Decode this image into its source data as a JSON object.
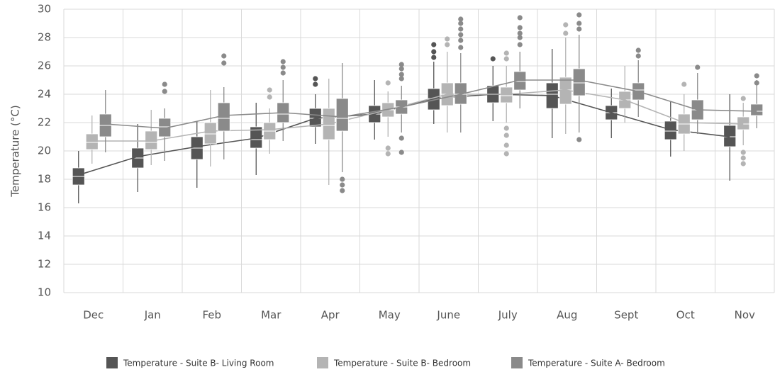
{
  "chart_data": {
    "type": "box",
    "y_label": "Temperature (°C)",
    "categories": [
      "Dec",
      "Jan",
      "Feb",
      "Mar",
      "Apr",
      "May",
      "June",
      "July",
      "Aug",
      "Sept",
      "Oct",
      "Nov"
    ],
    "ylim": [
      10,
      30
    ],
    "yticks": [
      10,
      12,
      14,
      16,
      18,
      20,
      22,
      24,
      26,
      28,
      30
    ],
    "grid": true,
    "legend": "bottom",
    "series": [
      {
        "name": "Temperature - Suite B- Living Room",
        "color": "#555555",
        "min": [
          16.3,
          17.1,
          17.4,
          18.3,
          20.5,
          20.8,
          21.9,
          22.1,
          20.9,
          20.9,
          19.6,
          17.9
        ],
        "q1": [
          17.6,
          18.8,
          19.4,
          20.2,
          21.7,
          22.0,
          22.9,
          23.4,
          23.0,
          22.2,
          20.8,
          20.3
        ],
        "median": [
          18.2,
          19.5,
          20.2,
          20.8,
          22.3,
          22.6,
          23.7,
          24.0,
          24.0,
          22.7,
          21.4,
          21.0
        ],
        "q3": [
          18.8,
          20.2,
          21.0,
          21.7,
          23.0,
          23.2,
          24.4,
          24.6,
          24.8,
          23.2,
          22.1,
          21.8
        ],
        "max": [
          20.0,
          21.9,
          22.1,
          23.4,
          24.0,
          25.0,
          26.3,
          26.0,
          27.2,
          24.4,
          23.5,
          24.0
        ],
        "mean": [
          18.3,
          19.6,
          20.3,
          20.9,
          22.3,
          22.6,
          23.7,
          24.0,
          23.9,
          22.7,
          21.5,
          21.0
        ],
        "outliers": [
          [],
          [],
          [],
          [],
          [
            24.7,
            25.1
          ],
          [],
          [
            26.6,
            27.0,
            27.5
          ],
          [
            26.5
          ],
          [],
          [],
          [],
          []
        ]
      },
      {
        "name": "Temperature - Suite B- Bedroom",
        "color": "#b4b4b4",
        "min": [
          19.1,
          19.0,
          18.9,
          19.8,
          17.6,
          21.0,
          21.3,
          22.0,
          21.2,
          22.0,
          20.0,
          20.4
        ],
        "q1": [
          20.1,
          20.1,
          20.5,
          20.8,
          20.8,
          22.4,
          23.2,
          23.4,
          23.3,
          23.0,
          21.2,
          21.5
        ],
        "median": [
          20.6,
          20.6,
          21.2,
          21.4,
          21.8,
          22.9,
          24.0,
          23.9,
          24.3,
          23.6,
          21.9,
          21.9
        ],
        "q3": [
          21.2,
          21.4,
          22.0,
          22.0,
          23.0,
          23.4,
          24.8,
          24.5,
          25.2,
          24.2,
          22.6,
          22.4
        ],
        "max": [
          22.5,
          22.9,
          24.3,
          23.0,
          25.1,
          24.2,
          27.0,
          26.0,
          28.0,
          26.0,
          24.0,
          23.4
        ],
        "mean": [
          20.7,
          20.7,
          21.4,
          21.5,
          21.9,
          22.9,
          24.0,
          24.0,
          24.3,
          23.6,
          22.0,
          21.9
        ],
        "outliers": [
          [],
          [],
          [],
          [
            23.8,
            24.3
          ],
          [],
          [
            24.8,
            20.2,
            19.8
          ],
          [
            27.5,
            27.9
          ],
          [
            26.5,
            26.9,
            21.6,
            21.1,
            20.4,
            19.8
          ],
          [
            28.3,
            28.9
          ],
          [],
          [
            24.7
          ],
          [
            23.7,
            19.9,
            19.5,
            19.1
          ]
        ]
      },
      {
        "name": "Temperature - Suite A- Bedroom",
        "color": "#8a8a8a",
        "min": [
          19.9,
          19.3,
          19.4,
          20.7,
          18.5,
          21.3,
          21.3,
          23.0,
          21.3,
          22.4,
          21.2,
          21.6
        ],
        "q1": [
          21.0,
          21.0,
          21.4,
          22.0,
          21.4,
          22.6,
          23.3,
          24.3,
          23.9,
          23.6,
          22.2,
          22.5
        ],
        "median": [
          21.8,
          21.7,
          22.3,
          22.6,
          22.3,
          23.1,
          24.0,
          24.9,
          24.8,
          24.3,
          22.9,
          22.8
        ],
        "q3": [
          22.6,
          22.3,
          23.4,
          23.4,
          23.7,
          23.6,
          24.8,
          25.6,
          25.8,
          24.8,
          23.6,
          23.3
        ],
        "max": [
          24.3,
          23.0,
          24.5,
          25.0,
          26.2,
          24.6,
          26.9,
          27.0,
          28.2,
          26.4,
          25.5,
          25.0
        ],
        "mean": [
          21.9,
          21.6,
          22.5,
          22.7,
          22.4,
          23.1,
          24.0,
          25.0,
          25.0,
          24.2,
          22.9,
          22.8
        ],
        "outliers": [
          [],
          [
            24.2,
            24.7
          ],
          [
            26.2,
            26.7
          ],
          [
            25.5,
            25.9,
            26.3
          ],
          [
            18.0,
            17.6,
            17.2
          ],
          [
            25.1,
            25.4,
            25.8,
            26.1,
            20.9,
            19.9
          ],
          [
            27.3,
            27.8,
            28.2,
            28.6,
            29.0,
            29.3
          ],
          [
            27.5,
            28.0,
            28.3,
            28.7,
            29.4
          ],
          [
            28.6,
            29.0,
            29.6,
            20.8
          ],
          [
            26.7,
            27.1
          ],
          [
            25.9
          ],
          [
            24.8,
            25.3
          ]
        ]
      }
    ]
  }
}
